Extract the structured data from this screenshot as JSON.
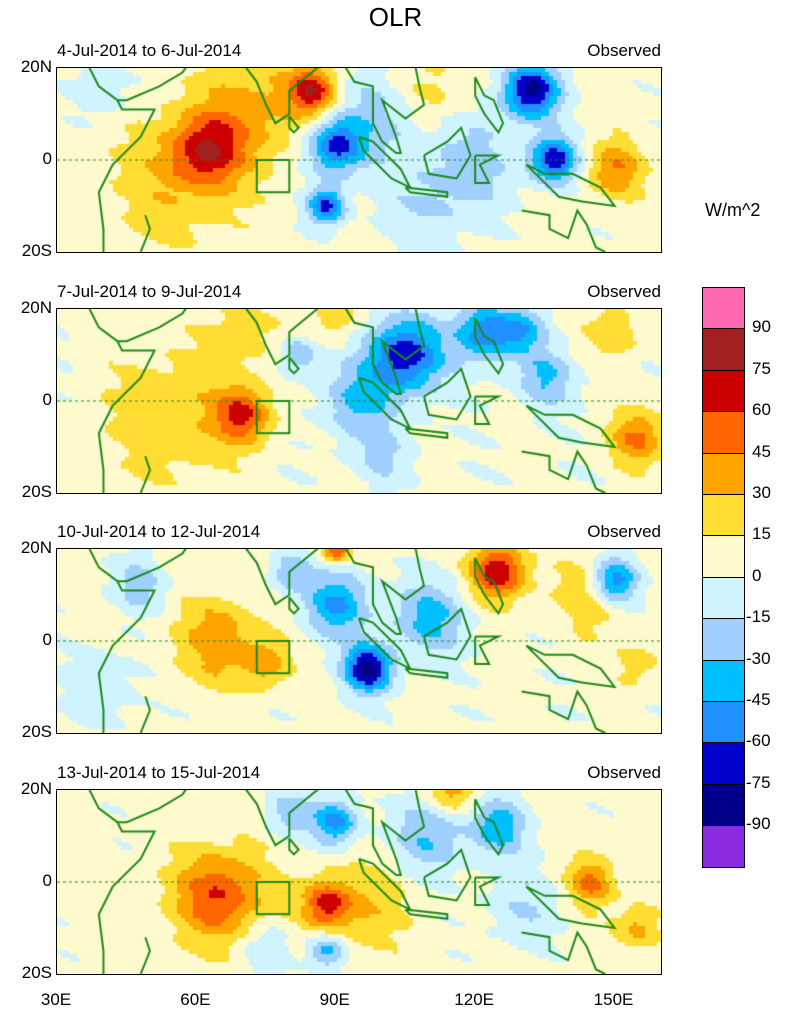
{
  "title": "OLR",
  "units": "W/m^2",
  "y_ticks": [
    "20N",
    "0",
    "20S"
  ],
  "x_ticks": [
    "30E",
    "60E",
    "90E",
    "120E",
    "150E"
  ],
  "chart_data": {
    "type": "heatmap",
    "extent": {
      "lon": [
        30,
        160
      ],
      "lat": [
        -20,
        20
      ]
    },
    "target_box": {
      "lon": [
        73,
        80
      ],
      "lat": [
        -7,
        0
      ]
    },
    "levels": [
      -90,
      -75,
      -60,
      -45,
      -30,
      -15,
      0,
      15,
      30,
      45,
      60,
      75,
      90
    ],
    "level_labels": [
      "90",
      "75",
      "60",
      "45",
      "30",
      "15",
      "0",
      "-15",
      "-30",
      "-45",
      "-60",
      "-75",
      "-90"
    ],
    "colors": [
      "#ff69b4",
      "#a0201f",
      "#cd0000",
      "#ff6600",
      "#ffa500",
      "#ffdd33",
      "#fffacd",
      "#d0f4ff",
      "#a0d0ff",
      "#00bfff",
      "#1e90ff",
      "#0000cd",
      "#00008b",
      "#8a2be2"
    ],
    "coast_color": "#1a8a1a",
    "panels": [
      {
        "label": "4-Jul-2014 to 6-Jul-2014",
        "tag": "Observed",
        "base": 5,
        "features": [
          [
            62,
            2,
            55,
            8
          ],
          [
            73,
            12,
            30,
            12
          ],
          [
            85,
            15,
            60,
            5
          ],
          [
            55,
            -5,
            20,
            15
          ],
          [
            150,
            -2,
            40,
            6
          ],
          [
            110,
            15,
            20,
            8
          ],
          [
            90,
            3,
            -70,
            6
          ],
          [
            88,
            -10,
            -70,
            4
          ],
          [
            132,
            15,
            -85,
            6
          ],
          [
            137,
            0,
            -75,
            5
          ],
          [
            100,
            10,
            -25,
            10
          ],
          [
            120,
            0,
            -25,
            10
          ],
          [
            40,
            15,
            -20,
            6
          ],
          [
            110,
            -10,
            -20,
            10
          ]
        ]
      },
      {
        "label": "7-Jul-2014 to 9-Jul-2014",
        "tag": "Observed",
        "base": 3,
        "features": [
          [
            70,
            -3,
            55,
            6
          ],
          [
            55,
            -3,
            25,
            15
          ],
          [
            90,
            18,
            25,
            5
          ],
          [
            155,
            -8,
            45,
            6
          ],
          [
            150,
            15,
            25,
            6
          ],
          [
            70,
            15,
            20,
            8
          ],
          [
            105,
            10,
            -75,
            8
          ],
          [
            122,
            15,
            -60,
            6
          ],
          [
            95,
            0,
            -35,
            8
          ],
          [
            82,
            10,
            -35,
            4
          ],
          [
            135,
            5,
            -35,
            6
          ],
          [
            130,
            15,
            -40,
            5
          ],
          [
            100,
            -12,
            -20,
            6
          ]
        ]
      },
      {
        "label": "10-Jul-2014 to 12-Jul-2014",
        "tag": "Observed",
        "base": 4,
        "features": [
          [
            125,
            15,
            70,
            6
          ],
          [
            90,
            20,
            60,
            3
          ],
          [
            65,
            0,
            35,
            10
          ],
          [
            75,
            -5,
            30,
            5
          ],
          [
            145,
            10,
            25,
            8
          ],
          [
            155,
            -5,
            20,
            5
          ],
          [
            97,
            -6,
            -90,
            5
          ],
          [
            90,
            8,
            -50,
            7
          ],
          [
            110,
            5,
            -40,
            8
          ],
          [
            150,
            13,
            -65,
            5
          ],
          [
            48,
            12,
            -25,
            6
          ],
          [
            40,
            -10,
            -15,
            8
          ],
          [
            80,
            15,
            -35,
            4
          ]
        ]
      },
      {
        "label": "13-Jul-2014 to 15-Jul-2014",
        "tag": "Observed",
        "base": 5,
        "features": [
          [
            65,
            -3,
            55,
            10
          ],
          [
            88,
            -5,
            50,
            5
          ],
          [
            145,
            0,
            45,
            5
          ],
          [
            95,
            -5,
            25,
            10
          ],
          [
            155,
            -10,
            30,
            5
          ],
          [
            115,
            20,
            35,
            5
          ],
          [
            90,
            13,
            -55,
            5
          ],
          [
            125,
            12,
            -45,
            6
          ],
          [
            110,
            10,
            -35,
            8
          ],
          [
            80,
            15,
            -30,
            5
          ],
          [
            88,
            -15,
            -45,
            4
          ],
          [
            75,
            -14,
            -20,
            6
          ],
          [
            130,
            -5,
            -20,
            8
          ]
        ]
      }
    ]
  }
}
